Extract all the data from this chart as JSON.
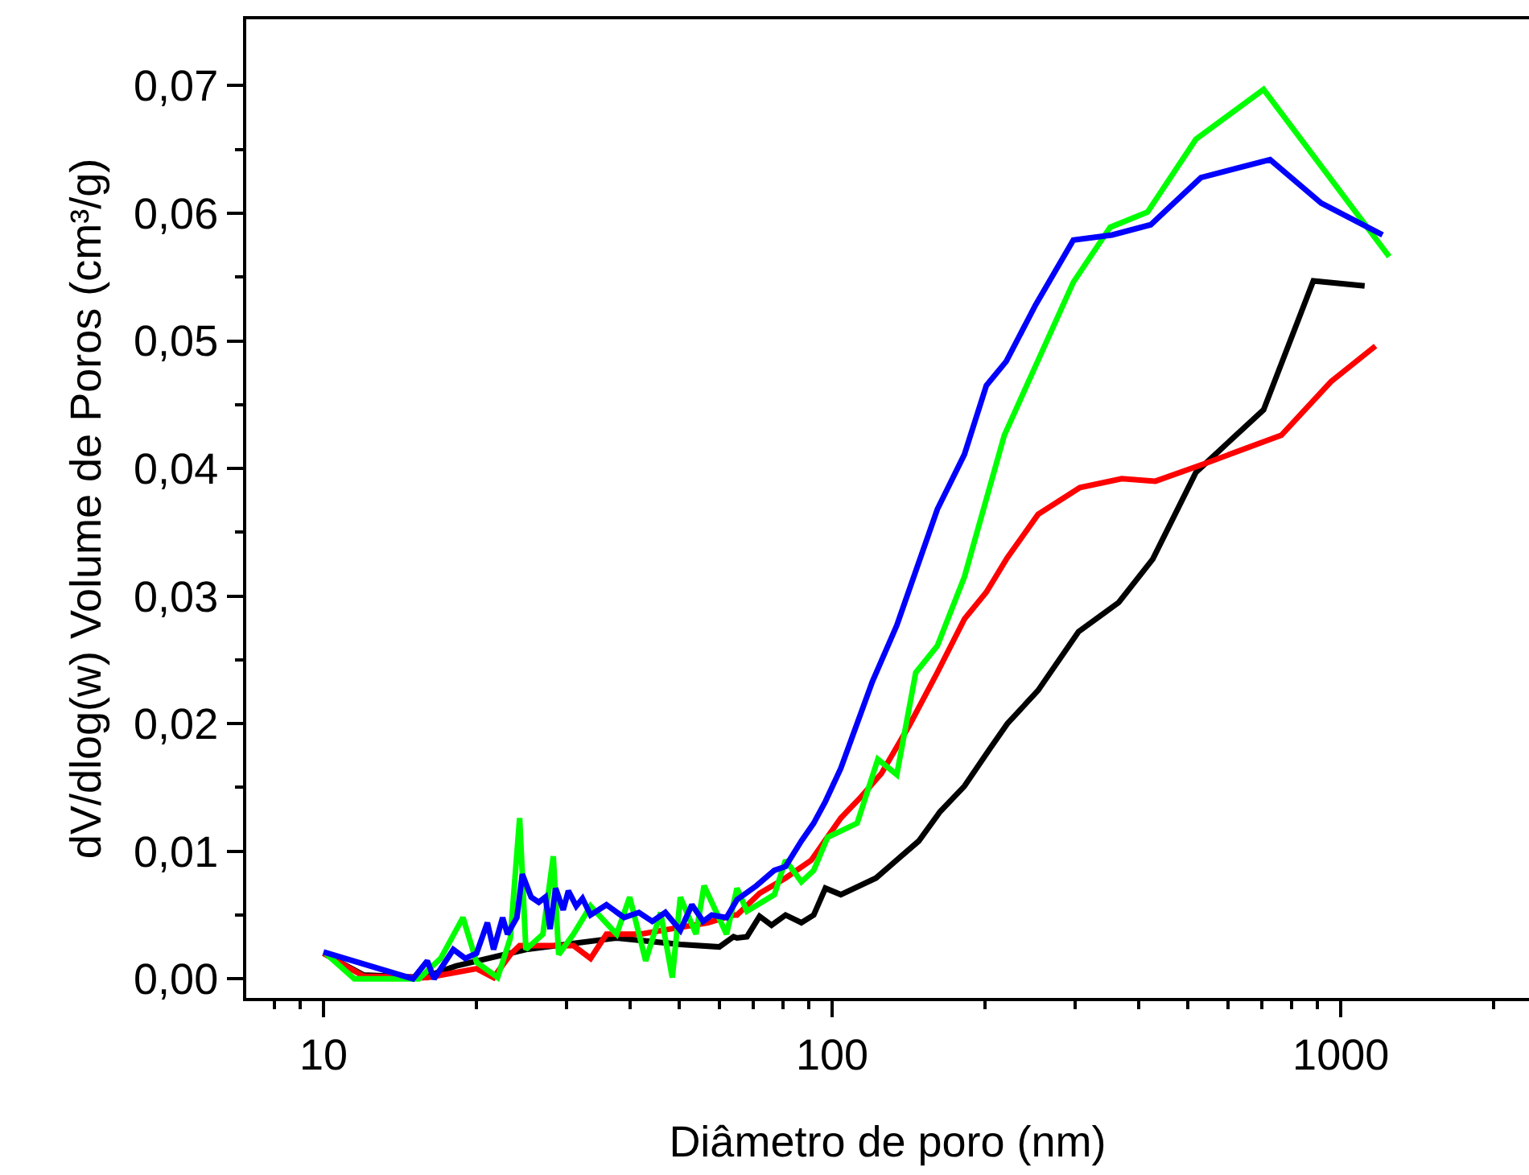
{
  "chart_data": {
    "type": "line",
    "xlabel": "Diâmetro de poro (nm)",
    "ylabel": "dV/dlog(w) Volume de Poros (cm³/g)",
    "log": "x",
    "marker": "none",
    "line_style": "solid",
    "xlim": [
      7.05,
      2344
    ],
    "ylim": [
      -0.0015,
      0.0752
    ],
    "xticks": [
      {
        "value": 8,
        "label": null
      },
      {
        "value": 9,
        "label": null
      },
      10,
      {
        "value": 20,
        "label": null
      },
      {
        "value": 30,
        "label": null
      },
      {
        "value": 40,
        "label": null
      },
      {
        "value": 50,
        "label": null
      },
      {
        "value": 60,
        "label": null
      },
      {
        "value": 70,
        "label": null
      },
      {
        "value": 80,
        "label": null
      },
      {
        "value": 90,
        "label": null
      },
      100,
      {
        "value": 200,
        "label": null
      },
      {
        "value": 300,
        "label": null
      },
      {
        "value": 400,
        "label": null
      },
      {
        "value": 500,
        "label": null
      },
      {
        "value": 600,
        "label": null
      },
      {
        "value": 700,
        "label": null
      },
      {
        "value": 800,
        "label": null
      },
      {
        "value": 900,
        "label": null
      },
      1000,
      {
        "value": 2000,
        "label": null
      }
    ],
    "yticks": [
      {
        "value": 0,
        "label": "0,00"
      },
      {
        "value": 0.005,
        "label": null
      },
      {
        "value": 0.01,
        "label": "0,01"
      },
      {
        "value": 0.015,
        "label": null
      },
      {
        "value": 0.02,
        "label": "0,02"
      },
      {
        "value": 0.025,
        "label": null
      },
      {
        "value": 0.03,
        "label": "0,03"
      },
      {
        "value": 0.035,
        "label": null
      },
      {
        "value": 0.04,
        "label": "0,04"
      },
      {
        "value": 0.045,
        "label": null
      },
      {
        "value": 0.05,
        "label": "0,05"
      },
      {
        "value": 0.055,
        "label": null
      },
      {
        "value": 0.06,
        "label": "0,06"
      },
      {
        "value": 0.065,
        "label": null
      },
      {
        "value": 0.07,
        "label": "0,07"
      }
    ],
    "series": [
      {
        "color": "#000000",
        "x": [
          10,
          12,
          15.7,
          18.2,
          25,
          37.7,
          50.3,
          60,
          64,
          65,
          68,
          72,
          76,
          81,
          87,
          92,
          97,
          104,
          122,
          133,
          148,
          163,
          182,
          204,
          221,
          254,
          305,
          366,
          427,
          519,
          705,
          883,
          1114
        ],
        "values": [
          0.002,
          0.0003,
          0.0001,
          0.001,
          0.0023,
          0.0032,
          0.0027,
          0.0025,
          0.0033,
          0.0032,
          0.0033,
          0.0049,
          0.0042,
          0.005,
          0.0044,
          0.005,
          0.0071,
          0.0066,
          0.0079,
          0.0092,
          0.0108,
          0.0131,
          0.0151,
          0.018,
          0.02,
          0.0226,
          0.0272,
          0.0295,
          0.0329,
          0.0397,
          0.0446,
          0.0547,
          0.0543
        ]
      },
      {
        "color": "#ff0000",
        "x": [
          10,
          12,
          16,
          20,
          21.6,
          23.3,
          24.3,
          27,
          31,
          33.5,
          36,
          42,
          48,
          57,
          64,
          65,
          72,
          81,
          91,
          104,
          113,
          125,
          142,
          161,
          182,
          201,
          221,
          254,
          307,
          371,
          432,
          542,
          764,
          956,
          1170
        ],
        "values": [
          0.002,
          0.0002,
          0.0001,
          0.0008,
          0.0001,
          0.0019,
          0.0026,
          0.0026,
          0.0026,
          0.0016,
          0.0035,
          0.0035,
          0.0039,
          0.0044,
          0.005,
          0.005,
          0.0067,
          0.0079,
          0.0093,
          0.0126,
          0.0141,
          0.0161,
          0.0199,
          0.024,
          0.0282,
          0.0303,
          0.033,
          0.0364,
          0.0385,
          0.0392,
          0.039,
          0.0404,
          0.0426,
          0.0468,
          0.0496
        ]
      },
      {
        "color": "#00ff00",
        "x": [
          10.1,
          11.5,
          15.4,
          17,
          18.8,
          20,
          22,
          23.3,
          24.3,
          25,
          27,
          28.3,
          29,
          31,
          33.5,
          37.7,
          40,
          43,
          46,
          48.5,
          50.3,
          54,
          56,
          62,
          65,
          68,
          77,
          81,
          87,
          92,
          98,
          112,
          123,
          134,
          146,
          161,
          182,
          218,
          298,
          352,
          417,
          519,
          705,
          1245
        ],
        "values": [
          0.002,
          0.0,
          0.0,
          0.0016,
          0.0048,
          0.0013,
          0.0001,
          0.0032,
          0.0126,
          0.0023,
          0.0035,
          0.0096,
          0.0019,
          0.0035,
          0.0057,
          0.0035,
          0.0064,
          0.0014,
          0.0052,
          0.0001,
          0.0064,
          0.0035,
          0.0073,
          0.0035,
          0.0071,
          0.0053,
          0.0066,
          0.0093,
          0.0076,
          0.0085,
          0.0111,
          0.0122,
          0.0172,
          0.016,
          0.024,
          0.0261,
          0.0315,
          0.0426,
          0.0546,
          0.0589,
          0.0601,
          0.0658,
          0.0697,
          0.0566
        ]
      },
      {
        "color": "#0000ff",
        "x": [
          10,
          15,
          16,
          16.5,
          18,
          19,
          20,
          21,
          21.6,
          22.5,
          23,
          24,
          24.6,
          25.6,
          26.5,
          27.3,
          27.9,
          28.6,
          29.6,
          30.3,
          31.4,
          32.3,
          33.5,
          36,
          39,
          41.7,
          44.3,
          47,
          50.3,
          53,
          55.8,
          58,
          62,
          65,
          71,
          77,
          81,
          87,
          92,
          97,
          104,
          120,
          134,
          161,
          182,
          201,
          220,
          251,
          298,
          355,
          423,
          531,
          726,
          915,
          1208
        ],
        "values": [
          0.0021,
          0.0,
          0.0014,
          0.0,
          0.0023,
          0.0016,
          0.002,
          0.0044,
          0.0023,
          0.0048,
          0.0035,
          0.0048,
          0.0082,
          0.0064,
          0.006,
          0.0064,
          0.0039,
          0.0071,
          0.0054,
          0.0069,
          0.0057,
          0.0063,
          0.005,
          0.0058,
          0.0048,
          0.0052,
          0.0045,
          0.0052,
          0.0038,
          0.0058,
          0.0045,
          0.005,
          0.0048,
          0.0062,
          0.0073,
          0.0085,
          0.0088,
          0.0108,
          0.0122,
          0.0139,
          0.0165,
          0.0233,
          0.0277,
          0.0368,
          0.0411,
          0.0465,
          0.0484,
          0.0528,
          0.0579,
          0.0583,
          0.0591,
          0.0628,
          0.0642,
          0.0608,
          0.0583
        ]
      }
    ]
  }
}
